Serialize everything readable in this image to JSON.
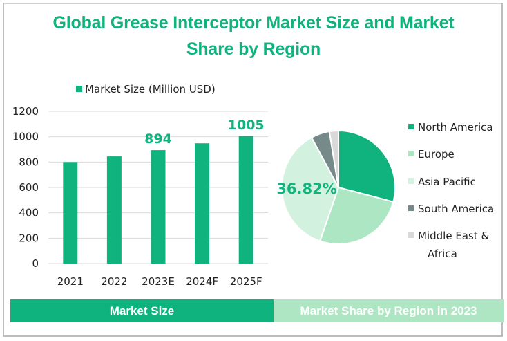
{
  "title": "Global Grease Interceptor Market Size and Market Share by Region",
  "chart_data": [
    {
      "type": "bar",
      "title": "",
      "legend": [
        "Market Size (Million USD)"
      ],
      "legend_position": "top",
      "categories": [
        "2021",
        "2022",
        "2023E",
        "2024F",
        "2025F"
      ],
      "values": [
        800,
        845,
        894,
        948,
        1005
      ],
      "data_labels": {
        "2023E": "894",
        "2025F": "1005"
      },
      "yticks": [
        "0",
        "200",
        "400",
        "600",
        "800",
        "1000",
        "1200"
      ],
      "ylim": [
        0,
        1200
      ],
      "grid": true,
      "xlabel": "",
      "ylabel": "",
      "color": "#10b37e",
      "caption": "Market Size"
    },
    {
      "type": "pie",
      "title": "",
      "labels": [
        "North America",
        "Europe",
        "Asia Pacific",
        "South America",
        "Middle East & Africa"
      ],
      "values": [
        29.08,
        26.22,
        36.82,
        5.3,
        2.58
      ],
      "colors": [
        "#10b37e",
        "#ade6c3",
        "#d2f1df",
        "#768a89",
        "#d9d9d9"
      ],
      "data_labels": {
        "Asia Pacific": "36.82%"
      },
      "legend_position": "right",
      "caption": "Market Share by Region in 2023"
    }
  ]
}
